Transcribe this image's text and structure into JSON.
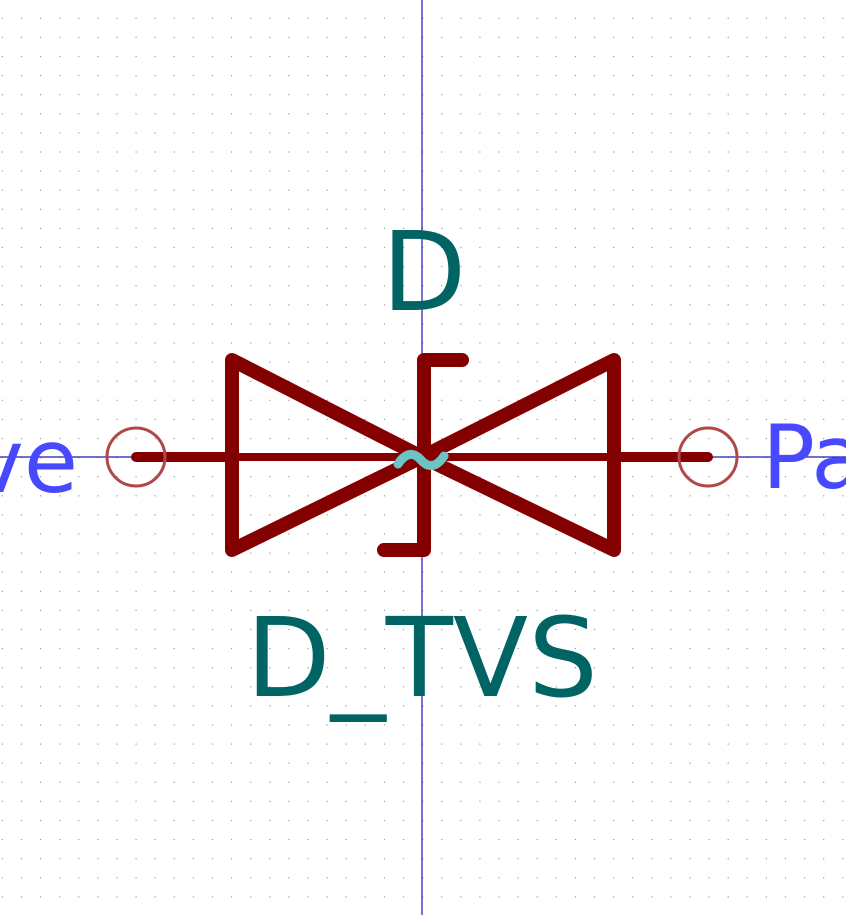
{
  "colors": {
    "background": "#ffffff",
    "grid_dot": "#9a9a9a",
    "axis": "#1a1ab0",
    "body": "#840000",
    "field_text": "#006464",
    "pin_text": "#4848ff",
    "pin_end": "#b04848",
    "tvs_mark": "#6cc4c4"
  },
  "symbol": {
    "reference": "D",
    "value": "D_TVS",
    "pin_left_name": "ve",
    "pin_right_name": "Pa"
  },
  "icons": {
    "left_pin_end": "pin-end-circle-icon",
    "right_pin_end": "pin-end-circle-icon",
    "tvs_mark": "tilde-icon"
  }
}
